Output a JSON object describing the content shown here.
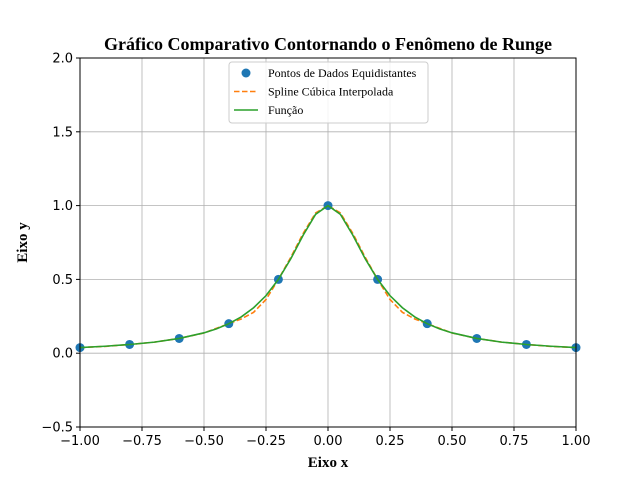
{
  "chart_data": {
    "type": "line",
    "title": "Gráfico Comparativo Contornando o Fenômeno de Runge",
    "xlabel": "Eixo x",
    "ylabel": "Eixo y",
    "xlim": [
      -1.0,
      1.0
    ],
    "ylim": [
      -0.5,
      2.0
    ],
    "xticks": [
      -1.0,
      -0.75,
      -0.5,
      -0.25,
      0.0,
      0.25,
      0.5,
      0.75,
      1.0
    ],
    "xtick_labels": [
      "−1.00",
      "−0.75",
      "−0.50",
      "−0.25",
      "0.00",
      "0.25",
      "0.50",
      "0.75",
      "1.00"
    ],
    "yticks": [
      -0.5,
      0.0,
      0.5,
      1.0,
      1.5,
      2.0
    ],
    "ytick_labels": [
      "−0.5",
      "0.0",
      "0.5",
      "1.0",
      "1.5",
      "2.0"
    ],
    "grid": true,
    "legend_position": "top-center",
    "series": [
      {
        "name": "Pontos de Dados Equidistantes",
        "style": "markers",
        "color": "#1f77b4",
        "x": [
          -1.0,
          -0.8,
          -0.6,
          -0.4,
          -0.2,
          0.0,
          0.2,
          0.4,
          0.6,
          0.8,
          1.0
        ],
        "y": [
          0.038,
          0.059,
          0.1,
          0.2,
          0.5,
          1.0,
          0.5,
          0.2,
          0.1,
          0.059,
          0.038
        ]
      },
      {
        "name": "Spline Cúbica Interpolada",
        "style": "dashed",
        "color": "#ff7f0e",
        "x": [
          -1.0,
          -0.9,
          -0.8,
          -0.7,
          -0.6,
          -0.5,
          -0.4,
          -0.35,
          -0.3,
          -0.25,
          -0.2,
          -0.15,
          -0.1,
          -0.05,
          0.0,
          0.05,
          0.1,
          0.15,
          0.2,
          0.25,
          0.3,
          0.35,
          0.4,
          0.5,
          0.6,
          0.7,
          0.8,
          0.9,
          1.0
        ],
        "y": [
          0.038,
          0.046,
          0.059,
          0.075,
          0.1,
          0.137,
          0.2,
          0.232,
          0.277,
          0.364,
          0.5,
          0.65,
          0.812,
          0.95,
          1.0,
          0.95,
          0.812,
          0.65,
          0.5,
          0.364,
          0.277,
          0.232,
          0.2,
          0.137,
          0.1,
          0.075,
          0.059,
          0.046,
          0.038
        ]
      },
      {
        "name": "Função",
        "style": "solid",
        "color": "#2ca02c",
        "x": [
          -1.0,
          -0.9,
          -0.8,
          -0.7,
          -0.6,
          -0.5,
          -0.45,
          -0.4,
          -0.35,
          -0.3,
          -0.25,
          -0.2,
          -0.15,
          -0.1,
          -0.05,
          0.0,
          0.05,
          0.1,
          0.15,
          0.2,
          0.25,
          0.3,
          0.35,
          0.4,
          0.45,
          0.5,
          0.6,
          0.7,
          0.8,
          0.9,
          1.0
        ],
        "y": [
          0.038,
          0.047,
          0.059,
          0.075,
          0.1,
          0.138,
          0.165,
          0.2,
          0.246,
          0.308,
          0.39,
          0.5,
          0.64,
          0.8,
          0.941,
          1.0,
          0.941,
          0.8,
          0.64,
          0.5,
          0.39,
          0.308,
          0.246,
          0.2,
          0.165,
          0.138,
          0.1,
          0.075,
          0.059,
          0.047,
          0.038
        ]
      }
    ]
  }
}
